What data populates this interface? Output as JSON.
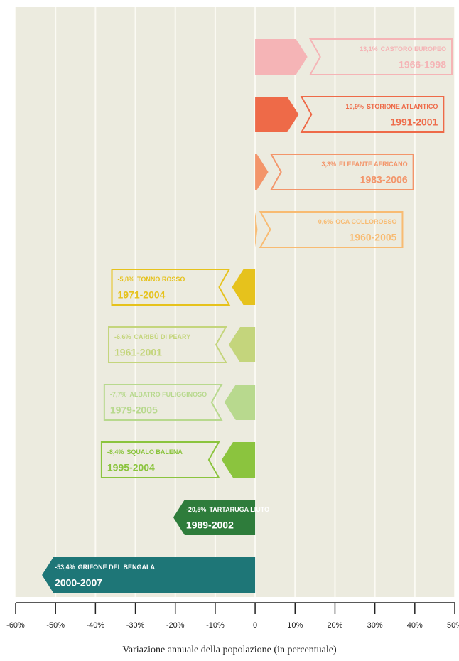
{
  "chart_data": {
    "type": "bar",
    "orientation": "horizontal",
    "xlabel": "Variazione annuale della popolazione (in percentuale)",
    "categories": [
      "CASTORO EUROPEO",
      "STORIONE ATLANTICO",
      "ELEFANTE AFRICANO",
      "OCA COLLOROSSO",
      "TONNO ROSSO",
      "CARIBÙ DI PEARY",
      "ALBATRO FULIGGINOSO",
      "SQUALO BALENA",
      "TARTARUGA LIUTO",
      "GRIFONE DEL BENGALA"
    ],
    "years": [
      "1966-1998",
      "1991-2001",
      "1983-2006",
      "1960-2005",
      "1971-2004",
      "1961-2001",
      "1979-2005",
      "1995-2004",
      "1989-2002",
      "2000-2007"
    ],
    "values": [
      13.1,
      10.9,
      3.3,
      0.6,
      -5.8,
      -6.6,
      -7.7,
      -8.4,
      -20.5,
      -53.4
    ],
    "value_labels": [
      "13,1%",
      "10,9%",
      "3,3%",
      "0,6%",
      "-5,8%",
      "-6,6%",
      "-7,7%",
      "-8,4%",
      "-20,5%",
      "-53,4%"
    ],
    "colors": [
      "#f5b4b6",
      "#ee6a48",
      "#f3956a",
      "#f8bb72",
      "#e6c21c",
      "#c4d57c",
      "#b8d98e",
      "#8bc43e",
      "#2e7c3b",
      "#1e7677"
    ],
    "xlim": [
      -60,
      50
    ],
    "xticks": [
      {
        "value": -60,
        "label": "-60%"
      },
      {
        "value": -50,
        "label": "-50%"
      },
      {
        "value": -40,
        "label": "-40%"
      },
      {
        "value": -30,
        "label": "-30%"
      },
      {
        "value": -20,
        "label": "-20%"
      },
      {
        "value": -10,
        "label": "-10%"
      },
      0,
      {
        "value": 10,
        "label": "10%"
      },
      {
        "value": 20,
        "label": "20%"
      },
      {
        "value": 30,
        "label": "30%"
      },
      {
        "value": 40,
        "label": "40%"
      },
      {
        "value": 50,
        "label": "50%"
      }
    ],
    "grid": true
  }
}
